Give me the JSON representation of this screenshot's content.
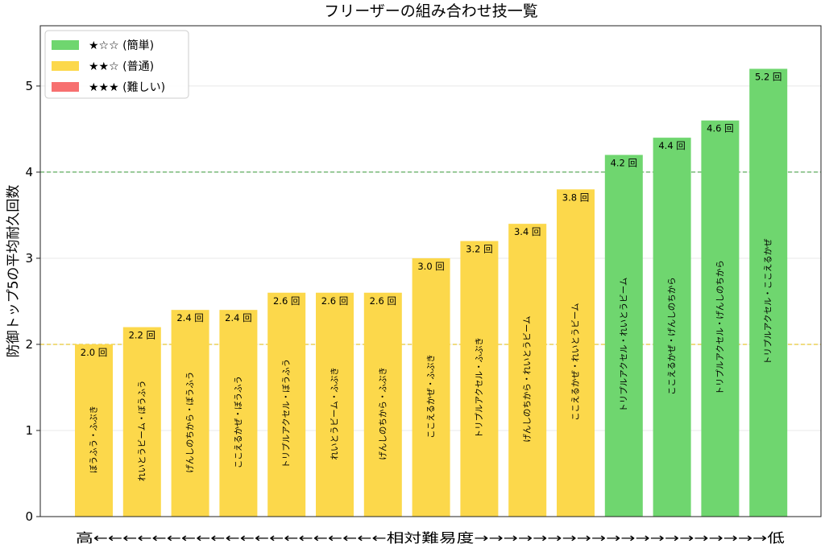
{
  "chart_data": {
    "type": "bar",
    "title": "フリーザーの組み合わせ技一覧",
    "ylabel": "防御トップ5の平均耐久回数",
    "xlabel": "高←←←←←←←←←←←←←←←←←←←←相対難易度→→→→→→→→→→→→→→→→→→→→低",
    "ylim": [
      0,
      5.7
    ],
    "yticks": [
      0,
      1,
      2,
      3,
      4,
      5
    ],
    "value_suffix": " 回",
    "categories": [
      "ぼうふう・ふぶき",
      "れいとうビーム・ぼうふう",
      "げんしのちから・ぼうふう",
      "ここえるかぜ・ぼうふう",
      "トリプルアクセル・ぼうふう",
      "れいとうビーム・ふぶき",
      "げんしのちから・ふぶき",
      "ここえるかぜ・ふぶき",
      "トリプルアクセル・ふぶき",
      "げんしのちから・れいとうビーム",
      "ここえるかぜ・れいとうビーム",
      "トリプルアクセル・れいとうビーム",
      "ここえるかぜ・げんしのちから",
      "トリプルアクセル・げんしのちから",
      "トリプルアクセル・ここえるかぜ"
    ],
    "values": [
      2.0,
      2.2,
      2.4,
      2.4,
      2.6,
      2.6,
      2.6,
      3.0,
      3.2,
      3.4,
      3.8,
      4.2,
      4.4,
      4.6,
      5.2
    ],
    "difficulty": [
      "normal",
      "normal",
      "normal",
      "normal",
      "normal",
      "normal",
      "normal",
      "normal",
      "normal",
      "normal",
      "normal",
      "easy",
      "easy",
      "easy",
      "easy"
    ],
    "reference_lines": [
      {
        "y": 4,
        "color": "#3a9a3a"
      },
      {
        "y": 2,
        "color": "#e0b800"
      }
    ],
    "legend": {
      "placement": "top-left",
      "entries": [
        {
          "key": "easy",
          "label": "★☆☆ (簡単)",
          "color": "#6fd66f"
        },
        {
          "key": "normal",
          "label": "★★☆ (普通)",
          "color": "#fcd84b"
        },
        {
          "key": "hard",
          "label": "★★★ (難しい)",
          "color": "#f77070"
        }
      ]
    },
    "grid": "y"
  }
}
